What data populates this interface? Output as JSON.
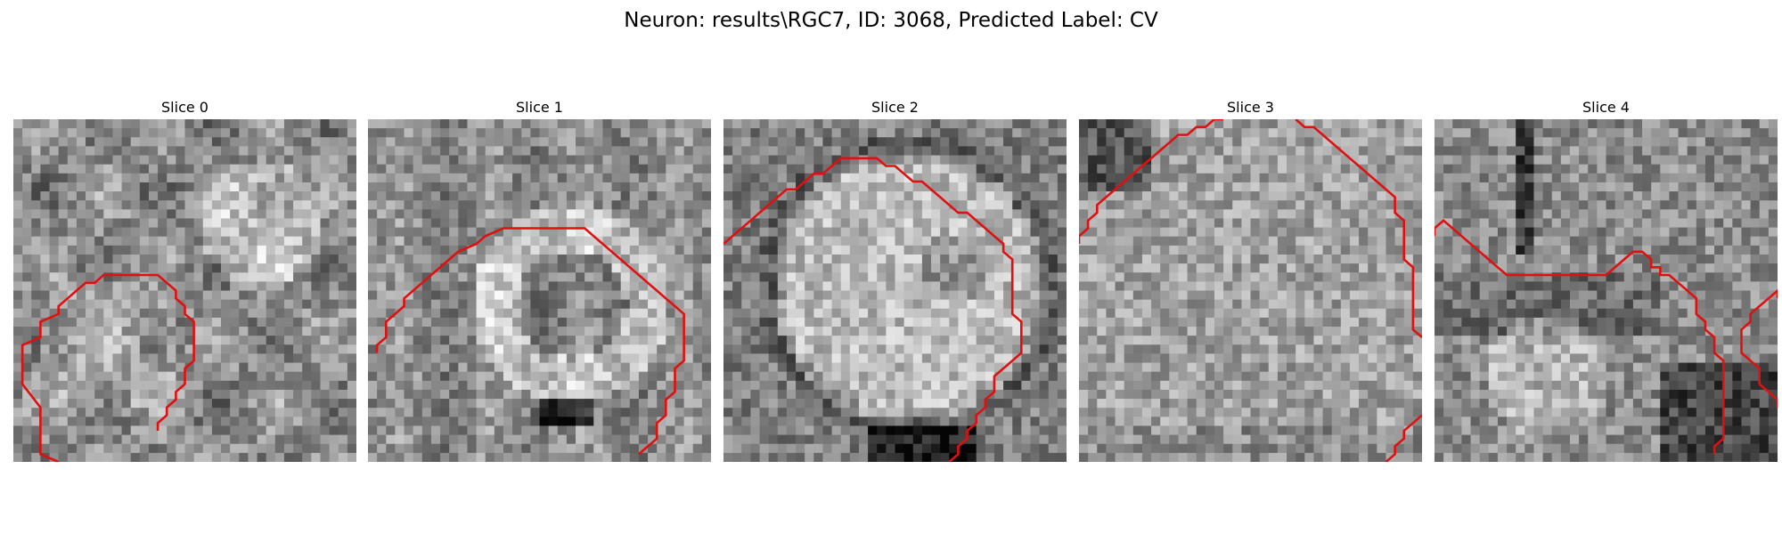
{
  "figure": {
    "title": "Neuron: results\\RGC7, ID: 3068, Predicted Label: CV",
    "contour_color": "#e01010"
  },
  "panels": [
    {
      "title": "Slice 0",
      "seed": 11,
      "contour": [
        [
          5,
          40
        ],
        [
          3,
          37
        ],
        [
          3,
          31
        ],
        [
          1,
          28
        ],
        [
          1,
          23
        ],
        [
          3,
          22
        ],
        [
          3,
          20
        ],
        [
          5,
          19
        ],
        [
          5,
          18
        ],
        [
          6,
          17
        ],
        [
          7,
          16
        ],
        [
          8,
          15
        ],
        [
          9,
          15
        ],
        [
          10,
          14
        ],
        [
          16,
          14
        ],
        [
          17,
          15
        ],
        [
          18,
          16
        ],
        [
          18,
          17
        ],
        [
          19,
          18
        ],
        [
          19,
          19
        ],
        [
          20,
          20
        ],
        [
          20,
          25
        ],
        [
          19,
          26
        ],
        [
          19,
          28
        ],
        [
          18,
          29
        ],
        [
          18,
          30
        ],
        [
          17,
          31
        ],
        [
          17,
          32
        ],
        [
          16,
          33
        ],
        [
          16,
          34
        ]
      ]
    },
    {
      "title": "Slice 1",
      "seed": 23,
      "contour": [
        [
          1,
          24
        ],
        [
          1,
          23
        ],
        [
          2,
          22
        ],
        [
          2,
          20
        ],
        [
          3,
          19
        ],
        [
          4,
          18
        ],
        [
          4,
          17
        ],
        [
          5,
          16
        ],
        [
          6,
          15
        ],
        [
          7,
          14
        ],
        [
          8,
          13
        ],
        [
          9,
          12
        ],
        [
          10,
          11
        ],
        [
          12,
          10
        ],
        [
          13,
          9
        ],
        [
          15,
          8
        ],
        [
          16,
          8
        ],
        [
          18,
          8
        ],
        [
          20,
          8
        ],
        [
          22,
          8
        ],
        [
          24,
          8
        ],
        [
          25,
          9
        ],
        [
          26,
          10
        ],
        [
          27,
          11
        ],
        [
          28,
          12
        ],
        [
          29,
          13
        ],
        [
          30,
          14
        ],
        [
          31,
          15
        ],
        [
          32,
          16
        ],
        [
          33,
          17
        ],
        [
          34,
          18
        ],
        [
          35,
          19
        ],
        [
          35,
          25
        ],
        [
          34,
          26
        ],
        [
          34,
          29
        ],
        [
          33,
          30
        ],
        [
          33,
          32
        ],
        [
          32,
          33
        ],
        [
          32,
          35
        ],
        [
          31,
          36
        ],
        [
          30,
          37
        ]
      ]
    },
    {
      "title": "Slice 2",
      "seed": 37,
      "contour": [
        [
          0,
          10
        ],
        [
          1,
          9
        ],
        [
          2,
          8
        ],
        [
          3,
          7
        ],
        [
          4,
          6
        ],
        [
          5,
          5
        ],
        [
          6,
          4
        ],
        [
          7,
          3
        ],
        [
          8,
          3
        ],
        [
          9,
          2
        ],
        [
          10,
          1
        ],
        [
          11,
          1
        ],
        [
          12,
          0
        ],
        [
          13,
          -1
        ],
        [
          14,
          -1
        ],
        [
          15,
          -1
        ],
        [
          16,
          -1
        ],
        [
          17,
          -1
        ],
        [
          18,
          0
        ],
        [
          19,
          0
        ],
        [
          20,
          1
        ],
        [
          21,
          2
        ],
        [
          22,
          2
        ],
        [
          23,
          3
        ],
        [
          24,
          4
        ],
        [
          25,
          5
        ],
        [
          26,
          6
        ],
        [
          27,
          6
        ],
        [
          28,
          7
        ],
        [
          29,
          8
        ],
        [
          30,
          9
        ],
        [
          31,
          10
        ],
        [
          31,
          11
        ],
        [
          32,
          12
        ],
        [
          32,
          19
        ],
        [
          33,
          20
        ],
        [
          33,
          21
        ],
        [
          33,
          24
        ],
        [
          32,
          25
        ],
        [
          31,
          26
        ],
        [
          30,
          27
        ],
        [
          30,
          29
        ],
        [
          29,
          30
        ],
        [
          29,
          31
        ],
        [
          28,
          32
        ],
        [
          28,
          33
        ],
        [
          27,
          34
        ],
        [
          27,
          35
        ],
        [
          26,
          36
        ],
        [
          26,
          37
        ],
        [
          25,
          38
        ]
      ]
    },
    {
      "title": "Slice 3",
      "seed": 51,
      "contour": [
        [
          0,
          10
        ],
        [
          0,
          9
        ],
        [
          1,
          8
        ],
        [
          1,
          7
        ],
        [
          2,
          6
        ],
        [
          2,
          5
        ],
        [
          3,
          4
        ],
        [
          4,
          3
        ],
        [
          5,
          2
        ],
        [
          6,
          1
        ],
        [
          7,
          0
        ],
        [
          8,
          -1
        ],
        [
          9,
          -2
        ],
        [
          10,
          -3
        ],
        [
          11,
          -4
        ],
        [
          12,
          -4
        ],
        [
          13,
          -5
        ],
        [
          14,
          -5
        ],
        [
          15,
          -6
        ],
        [
          16,
          -6
        ]
      ],
      "contour2": [
        [
          24,
          -6
        ],
        [
          25,
          -5
        ],
        [
          26,
          -5
        ],
        [
          27,
          -4
        ],
        [
          28,
          -3
        ],
        [
          29,
          -2
        ],
        [
          30,
          -1
        ],
        [
          31,
          0
        ],
        [
          32,
          1
        ],
        [
          33,
          2
        ],
        [
          34,
          3
        ],
        [
          35,
          4
        ],
        [
          35,
          6
        ],
        [
          36,
          7
        ],
        [
          36,
          12
        ],
        [
          37,
          13
        ],
        [
          37,
          21
        ],
        [
          38,
          22
        ]
      ],
      "contour3": [
        [
          38,
          32
        ],
        [
          37,
          33
        ],
        [
          36,
          34
        ],
        [
          36,
          35
        ],
        [
          35,
          36
        ],
        [
          35,
          37
        ],
        [
          34,
          38
        ]
      ]
    },
    {
      "title": "Slice 4",
      "seed": 67,
      "contour": [
        [
          -1,
          9
        ],
        [
          0,
          8
        ],
        [
          1,
          7
        ],
        [
          2,
          8
        ],
        [
          3,
          9
        ],
        [
          4,
          10
        ],
        [
          5,
          11
        ],
        [
          6,
          12
        ],
        [
          7,
          13
        ],
        [
          8,
          14
        ],
        [
          9,
          14
        ],
        [
          10,
          14
        ],
        [
          12,
          14
        ],
        [
          14,
          14
        ],
        [
          16,
          14
        ],
        [
          18,
          14
        ],
        [
          19,
          14
        ],
        [
          20,
          13
        ],
        [
          21,
          12
        ],
        [
          22,
          11
        ],
        [
          23,
          11
        ],
        [
          24,
          12
        ],
        [
          24,
          13
        ],
        [
          25,
          13
        ],
        [
          25,
          14
        ],
        [
          26,
          14
        ],
        [
          27,
          15
        ],
        [
          28,
          16
        ],
        [
          29,
          17
        ],
        [
          29,
          19
        ],
        [
          30,
          20
        ],
        [
          30,
          21
        ],
        [
          31,
          22
        ],
        [
          31,
          24
        ],
        [
          32,
          25
        ],
        [
          32,
          31
        ],
        [
          32,
          35
        ],
        [
          31,
          36
        ],
        [
          31,
          37
        ]
      ],
      "contour2": [
        [
          39,
          17
        ],
        [
          38,
          16
        ],
        [
          37,
          17
        ],
        [
          36,
          18
        ],
        [
          35,
          19
        ],
        [
          35,
          20
        ],
        [
          34,
          21
        ],
        [
          34,
          24
        ],
        [
          35,
          25
        ],
        [
          36,
          26
        ],
        [
          36,
          28
        ],
        [
          37,
          29
        ],
        [
          38,
          30
        ],
        [
          39,
          31
        ]
      ]
    }
  ]
}
